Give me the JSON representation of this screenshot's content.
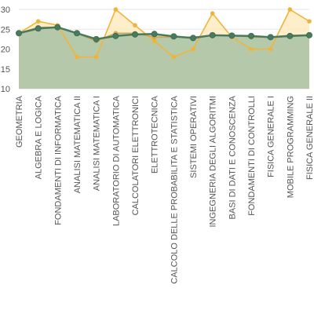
{
  "chart_data": {
    "type": "area",
    "title": "",
    "xlabel": "",
    "ylabel": "",
    "ylim": [
      10,
      30
    ],
    "yticks": [
      10,
      15,
      20,
      25,
      30
    ],
    "grid": true,
    "legend": "none",
    "categories": [
      "GEOMETRIA",
      "ALGEBRA E LOGICA",
      "FONDAMENTI DI INFORMATICA",
      "ANALISI MATEMATICA II",
      "ANALISI MATEMATICA I",
      "LABORATORIO DI AUTOMATICA",
      "CALCOLATORI ELETTRONICI",
      "ELETTROTECNICA",
      "CALCOLO DELLE PROBABILITA E STATISTICA",
      "SISTEMI OPERATIVI",
      "INGEGNERIA DEGLI ALGORITMI",
      "BASI DI DATI E CONOSCENZA",
      "FONDAMENTI DI CONTROLLI",
      "FISICA GENERALE I",
      "MOBILE PROGRAMMING",
      "FISICA GENERALE II"
    ],
    "series": [
      {
        "color": "#f0b43c",
        "fill": "#fde9b8",
        "values": [
          24,
          27,
          26,
          18,
          18,
          30,
          26,
          22,
          18,
          20,
          29,
          23,
          20,
          20,
          30,
          27
        ]
      },
      {
        "color": "#d6a64c",
        "fill": "#a9d1bf",
        "values": [
          24,
          25.5,
          25.5,
          24,
          22,
          24,
          24,
          23,
          23,
          23,
          23.5,
          23.5,
          23,
          23,
          23.5,
          23.5
        ]
      },
      {
        "color": "#4a7a5e",
        "fill": "#b5c7a6",
        "values": [
          24,
          25.2,
          25.5,
          24,
          22.5,
          23.3,
          23.7,
          23.8,
          23.2,
          22.8,
          23.5,
          23.4,
          23.3,
          23,
          23.3,
          23.5
        ]
      }
    ]
  }
}
